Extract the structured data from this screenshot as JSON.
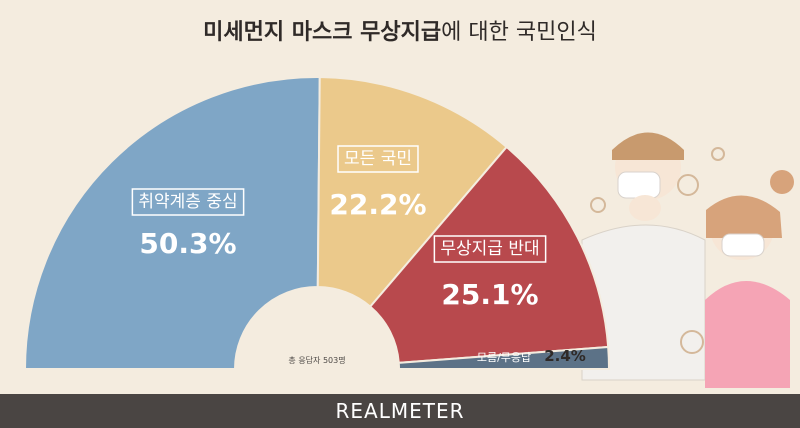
{
  "title": {
    "bold": "미세먼지 마스크 무상지급",
    "light": "에 대한 국민인식"
  },
  "note": "총 응답자 503명",
  "brand": "REALMETER",
  "colors": {
    "background": "#f4ecdf",
    "blue": "#7fa6c6",
    "yellow": "#ebc98b",
    "red": "#b8494d",
    "navy": "#5c7287",
    "footer": "#4a4543"
  },
  "chart_data": {
    "type": "pie",
    "shape": "half-donut",
    "title": "미세먼지 마스크 무상지급에 대한 국민인식",
    "categories": [
      "취약계층 중심",
      "모든 국민",
      "무상지급 반대",
      "모름/무응답"
    ],
    "values": [
      50.3,
      22.2,
      25.1,
      2.4
    ],
    "value_labels": [
      "50.3%",
      "22.2%",
      "25.1%",
      "2.4%"
    ],
    "colors": [
      "#7fa6c6",
      "#ebc98b",
      "#b8494d",
      "#5c7287"
    ]
  }
}
